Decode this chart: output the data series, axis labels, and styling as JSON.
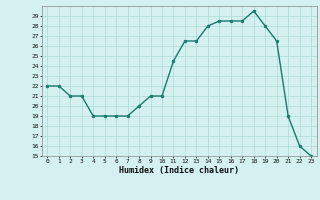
{
  "x": [
    0,
    1,
    2,
    3,
    4,
    5,
    6,
    7,
    8,
    9,
    10,
    11,
    12,
    13,
    14,
    15,
    16,
    17,
    18,
    19,
    20,
    21,
    22,
    23
  ],
  "y": [
    22,
    22,
    21,
    21,
    19,
    19,
    19,
    19,
    20,
    21,
    21,
    24.5,
    26.5,
    26.5,
    28,
    28.5,
    28.5,
    28.5,
    29.5,
    28,
    26.5,
    19,
    16,
    15
  ],
  "line_color": "#1a7a6e",
  "marker_color": "#1a7a6e",
  "bg_color": "#d4f0f0",
  "grid_color": "#afd8d8",
  "xlabel": "Humidex (Indice chaleur)",
  "ylim": [
    15,
    30
  ],
  "xlim": [
    -0.5,
    23.5
  ],
  "yticks": [
    15,
    16,
    17,
    18,
    19,
    20,
    21,
    22,
    23,
    24,
    25,
    26,
    27,
    28,
    29
  ],
  "xticks": [
    0,
    1,
    2,
    3,
    4,
    5,
    6,
    7,
    8,
    9,
    10,
    11,
    12,
    13,
    14,
    15,
    16,
    17,
    18,
    19,
    20,
    21,
    22,
    23
  ]
}
